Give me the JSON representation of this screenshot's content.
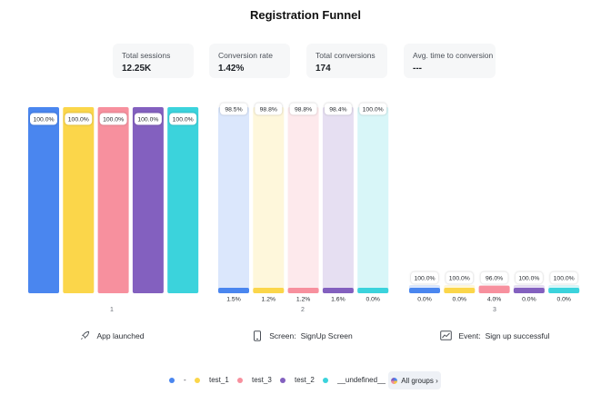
{
  "title": "Registration Funnel",
  "stats": [
    {
      "label": "Total sessions",
      "value": "12.25K"
    },
    {
      "label": "Conversion rate",
      "value": "1.42%"
    },
    {
      "label": "Total conversions",
      "value": "174"
    },
    {
      "label": "Avg. time to conversion",
      "value": "---"
    }
  ],
  "chart_data": {
    "type": "bar",
    "chart_style": "funnel",
    "categories": [
      "App launched",
      "Screen: SignUp Screen",
      "Event: Sign up successful"
    ],
    "step_numbers": [
      "1",
      "2",
      "3"
    ],
    "steps": [
      {
        "kind": "",
        "name": "App launched",
        "icon": "rocket-icon"
      },
      {
        "kind": "Screen:",
        "name": "SignUp Screen",
        "icon": "phone-icon"
      },
      {
        "kind": "Event:",
        "name": "Sign up successful",
        "icon": "trend-chart-icon"
      }
    ],
    "series": [
      {
        "name": "-",
        "color": "#4a86ef",
        "values": [
          100.0,
          1.5,
          0.0
        ],
        "dropoff": [
          null,
          98.5,
          100.0
        ],
        "value_labels": [
          "100.0%",
          "1.5%",
          "0.0%"
        ],
        "dropoff_labels": [
          "",
          "98.5%",
          "100.0%"
        ]
      },
      {
        "name": "test_1",
        "color": "#fbd64a",
        "values": [
          100.0,
          1.2,
          0.0
        ],
        "dropoff": [
          null,
          98.8,
          100.0
        ],
        "value_labels": [
          "100.0%",
          "1.2%",
          "0.0%"
        ],
        "dropoff_labels": [
          "",
          "98.8%",
          "100.0%"
        ]
      },
      {
        "name": "test_3",
        "color": "#f7909e",
        "values": [
          100.0,
          1.2,
          4.0
        ],
        "dropoff": [
          null,
          98.8,
          96.0
        ],
        "value_labels": [
          "100.0%",
          "1.2%",
          "4.0%"
        ],
        "dropoff_labels": [
          "",
          "98.8%",
          "96.0%"
        ]
      },
      {
        "name": "test_2",
        "color": "#8360bf",
        "values": [
          100.0,
          1.6,
          0.0
        ],
        "dropoff": [
          null,
          98.4,
          100.0
        ],
        "value_labels": [
          "100.0%",
          "1.6%",
          "0.0%"
        ],
        "dropoff_labels": [
          "",
          "98.4%",
          "100.0%"
        ]
      },
      {
        "name": "__undefined__",
        "color": "#3bd3dc",
        "values": [
          100.0,
          0.0,
          0.0
        ],
        "dropoff": [
          null,
          100.0,
          100.0
        ],
        "value_labels": [
          "100.0%",
          "0.0%",
          "0.0%"
        ],
        "dropoff_labels": [
          "",
          "100.0%",
          "100.0%"
        ]
      }
    ],
    "ylim": [
      0,
      100
    ],
    "grid": false,
    "legend_position": "bottom"
  },
  "legend": {
    "all_groups_label": "All groups ›"
  }
}
